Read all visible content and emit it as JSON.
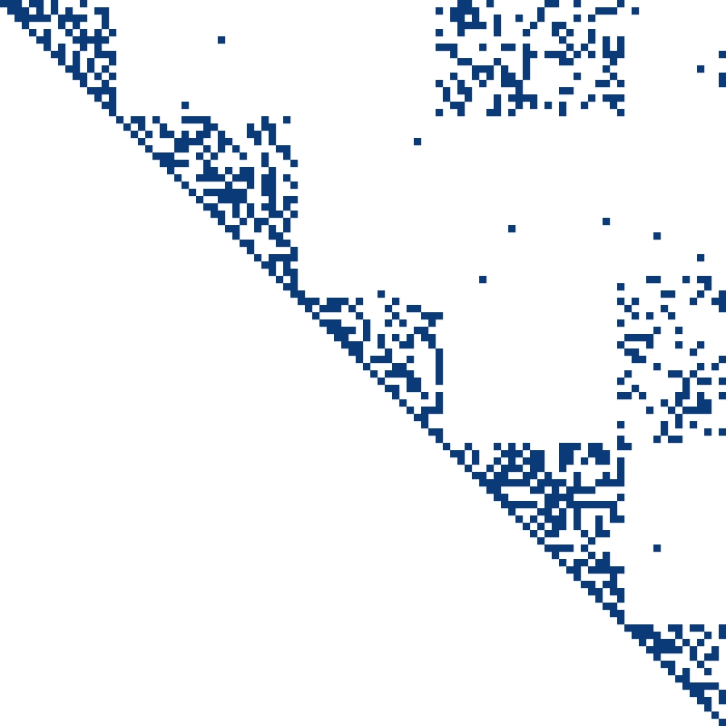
{
  "chart_data": {
    "type": "heatmap",
    "subtype": "sparsity-pattern",
    "matrix_size": 100,
    "nonzero_color": "#0b3a78",
    "background_color": "#ffffff",
    "structure": "upper-triangular",
    "grid": false,
    "seed": 20240611,
    "diagonal_blocks": [
      {
        "rows": [
          0,
          16
        ],
        "density": 0.4
      },
      {
        "rows": [
          16,
          41
        ],
        "density": 0.45
      },
      {
        "rows": [
          41,
          61
        ],
        "density": 0.38
      },
      {
        "rows": [
          61,
          86
        ],
        "density": 0.45
      },
      {
        "rows": [
          86,
          100
        ],
        "density": 0.45
      }
    ],
    "offdiagonal_blocks": [
      {
        "rows": [
          0,
          16
        ],
        "cols": [
          60,
          86
        ],
        "density": 0.28
      },
      {
        "rows": [
          38,
          62
        ],
        "cols": [
          85,
          100
        ],
        "density": 0.28
      },
      {
        "rows": [
          6,
          14
        ],
        "cols": [
          96,
          100
        ],
        "density": 0.15
      }
    ],
    "background_density": 0.004
  }
}
